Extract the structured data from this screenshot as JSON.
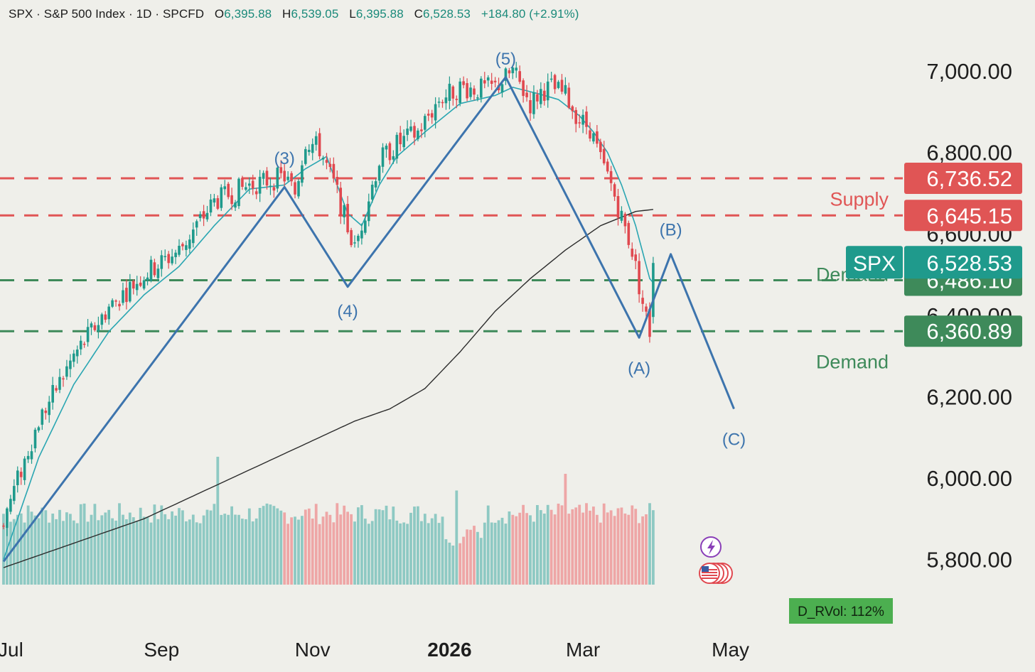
{
  "header": {
    "symbol": "SPX",
    "name": "S&P 500 Index",
    "interval": "1D",
    "source": "SPCFD",
    "open_label": "O",
    "open": "6,395.88",
    "high_label": "H",
    "high": "6,539.05",
    "low_label": "L",
    "low": "6,395.88",
    "close_label": "C",
    "close": "6,528.53",
    "change": "+184.80 (+2.91%)"
  },
  "chart_data": {
    "type": "candlestick",
    "title": "SPX · S&P 500 Index · 1D · SPCFD",
    "y_axis": {
      "ticks": [
        {
          "value": 7000,
          "label": "7,000.00"
        },
        {
          "value": 6800,
          "label": "6,800.00"
        },
        {
          "value": 6600,
          "label": "6,600.00"
        },
        {
          "value": 6400,
          "label": "6,400.00"
        },
        {
          "value": 6200,
          "label": "6,200.00"
        },
        {
          "value": 6000,
          "label": "6,000.00"
        },
        {
          "value": 5800,
          "label": "5,800.00"
        }
      ],
      "ylim": [
        5630,
        7150
      ]
    },
    "x_axis": {
      "ticks": [
        {
          "index": 2,
          "label": "Jul",
          "bold": false
        },
        {
          "index": 45,
          "label": "Sep",
          "bold": false
        },
        {
          "index": 88,
          "label": "Nov",
          "bold": false
        },
        {
          "index": 127,
          "label": "2026",
          "bold": true
        },
        {
          "index": 165,
          "label": "Mar",
          "bold": false
        },
        {
          "index": 207,
          "label": "May",
          "bold": false
        }
      ]
    },
    "price_path": [
      [
        0,
        5900
      ],
      [
        10,
        6140
      ],
      [
        20,
        6300
      ],
      [
        30,
        6420
      ],
      [
        40,
        6500
      ],
      [
        50,
        6560
      ],
      [
        60,
        6680
      ],
      [
        70,
        6720
      ],
      [
        80,
        6740
      ],
      [
        83,
        6700
      ],
      [
        86,
        6830
      ],
      [
        90,
        6810
      ],
      [
        95,
        6700
      ],
      [
        100,
        6560
      ],
      [
        103,
        6660
      ],
      [
        107,
        6780
      ],
      [
        112,
        6820
      ],
      [
        118,
        6850
      ],
      [
        124,
        6930
      ],
      [
        130,
        6960
      ],
      [
        135,
        6955
      ],
      [
        140,
        6960
      ],
      [
        145,
        7000
      ],
      [
        150,
        6920
      ],
      [
        153,
        6950
      ],
      [
        156,
        6960
      ],
      [
        160,
        6940
      ],
      [
        164,
        6880
      ],
      [
        167,
        6860
      ],
      [
        170,
        6780
      ],
      [
        173,
        6720
      ],
      [
        176,
        6640
      ],
      [
        179,
        6560
      ],
      [
        182,
        6430
      ],
      [
        184,
        6360
      ],
      [
        185,
        6528.53
      ]
    ],
    "series": [
      {
        "name": "EMA",
        "type": "line",
        "color": "#2aa6b2",
        "values": [
          [
            0,
            5800
          ],
          [
            10,
            6050
          ],
          [
            20,
            6230
          ],
          [
            30,
            6360
          ],
          [
            40,
            6450
          ],
          [
            50,
            6520
          ],
          [
            60,
            6620
          ],
          [
            70,
            6710
          ],
          [
            80,
            6720
          ],
          [
            86,
            6760
          ],
          [
            92,
            6790
          ],
          [
            98,
            6650
          ],
          [
            102,
            6620
          ],
          [
            107,
            6720
          ],
          [
            112,
            6790
          ],
          [
            120,
            6850
          ],
          [
            130,
            6920
          ],
          [
            140,
            6940
          ],
          [
            145,
            6960
          ],
          [
            152,
            6945
          ],
          [
            158,
            6930
          ],
          [
            164,
            6890
          ],
          [
            168,
            6850
          ],
          [
            172,
            6800
          ],
          [
            176,
            6720
          ],
          [
            180,
            6620
          ],
          [
            184,
            6490
          ],
          [
            185,
            6480
          ]
        ]
      },
      {
        "name": "SMA",
        "type": "line",
        "color": "#2b2b2b",
        "values": [
          [
            0,
            5780
          ],
          [
            20,
            5840
          ],
          [
            40,
            5900
          ],
          [
            60,
            5980
          ],
          [
            80,
            6060
          ],
          [
            100,
            6140
          ],
          [
            110,
            6170
          ],
          [
            120,
            6220
          ],
          [
            130,
            6310
          ],
          [
            140,
            6410
          ],
          [
            150,
            6490
          ],
          [
            160,
            6560
          ],
          [
            170,
            6620
          ],
          [
            180,
            6655
          ],
          [
            185,
            6660
          ]
        ]
      }
    ],
    "wave_annotations": {
      "color": "#3d74ad",
      "path": [
        [
          0,
          5795
        ],
        [
          80,
          6715
        ],
        [
          98,
          6470
        ],
        [
          143,
          6985
        ],
        [
          181,
          6345
        ],
        [
          190,
          6550
        ],
        [
          208,
          6170
        ]
      ],
      "labels": [
        {
          "text": "(3)",
          "at": [
            80,
            6785
          ]
        },
        {
          "text": "(4)",
          "at": [
            98,
            6410
          ]
        },
        {
          "text": "(5)",
          "at": [
            143,
            7030
          ]
        },
        {
          "text": "(A)",
          "at": [
            181,
            6270
          ]
        },
        {
          "text": "(B)",
          "at": [
            190,
            6610
          ]
        },
        {
          "text": "(C)",
          "at": [
            208,
            6095
          ]
        }
      ]
    },
    "levels": [
      {
        "value": 6736.52,
        "label": "6,736.52",
        "color": "#e05555",
        "style": "dashed"
      },
      {
        "value": 6645.15,
        "label": "6,645.15",
        "color": "#e05555",
        "style": "dashed"
      },
      {
        "value": 6486.1,
        "label": "6,486.10",
        "color": "#3e8a5a",
        "style": "dashed"
      },
      {
        "value": 6360.89,
        "label": "6,360.89",
        "color": "#3e8a5a",
        "style": "dashed"
      }
    ],
    "current_price": {
      "symbol": "SPX",
      "label": "6,528.53",
      "value": 6528.53,
      "color": "#1f9a8c"
    },
    "zone_labels": [
      {
        "text": "Supply",
        "value": 6685,
        "color": "#e05555"
      },
      {
        "text": "Demand",
        "value": 6500,
        "color": "#3e8a5a"
      },
      {
        "text": "Demand",
        "value": 6285,
        "color": "#3e8a5a"
      }
    ],
    "volume_indicator": {
      "label": "D_RVol: 112%",
      "color": "#4caf50",
      "last_pct": 112
    }
  },
  "colors": {
    "background": "#efefea",
    "up": "#1f9a8c",
    "down": "#e0484f",
    "vol_up": "#8ec9c3",
    "vol_down": "#eea6a6"
  },
  "icons": {
    "lightning": "lightning-icon",
    "flag": "us-flag-icon"
  }
}
